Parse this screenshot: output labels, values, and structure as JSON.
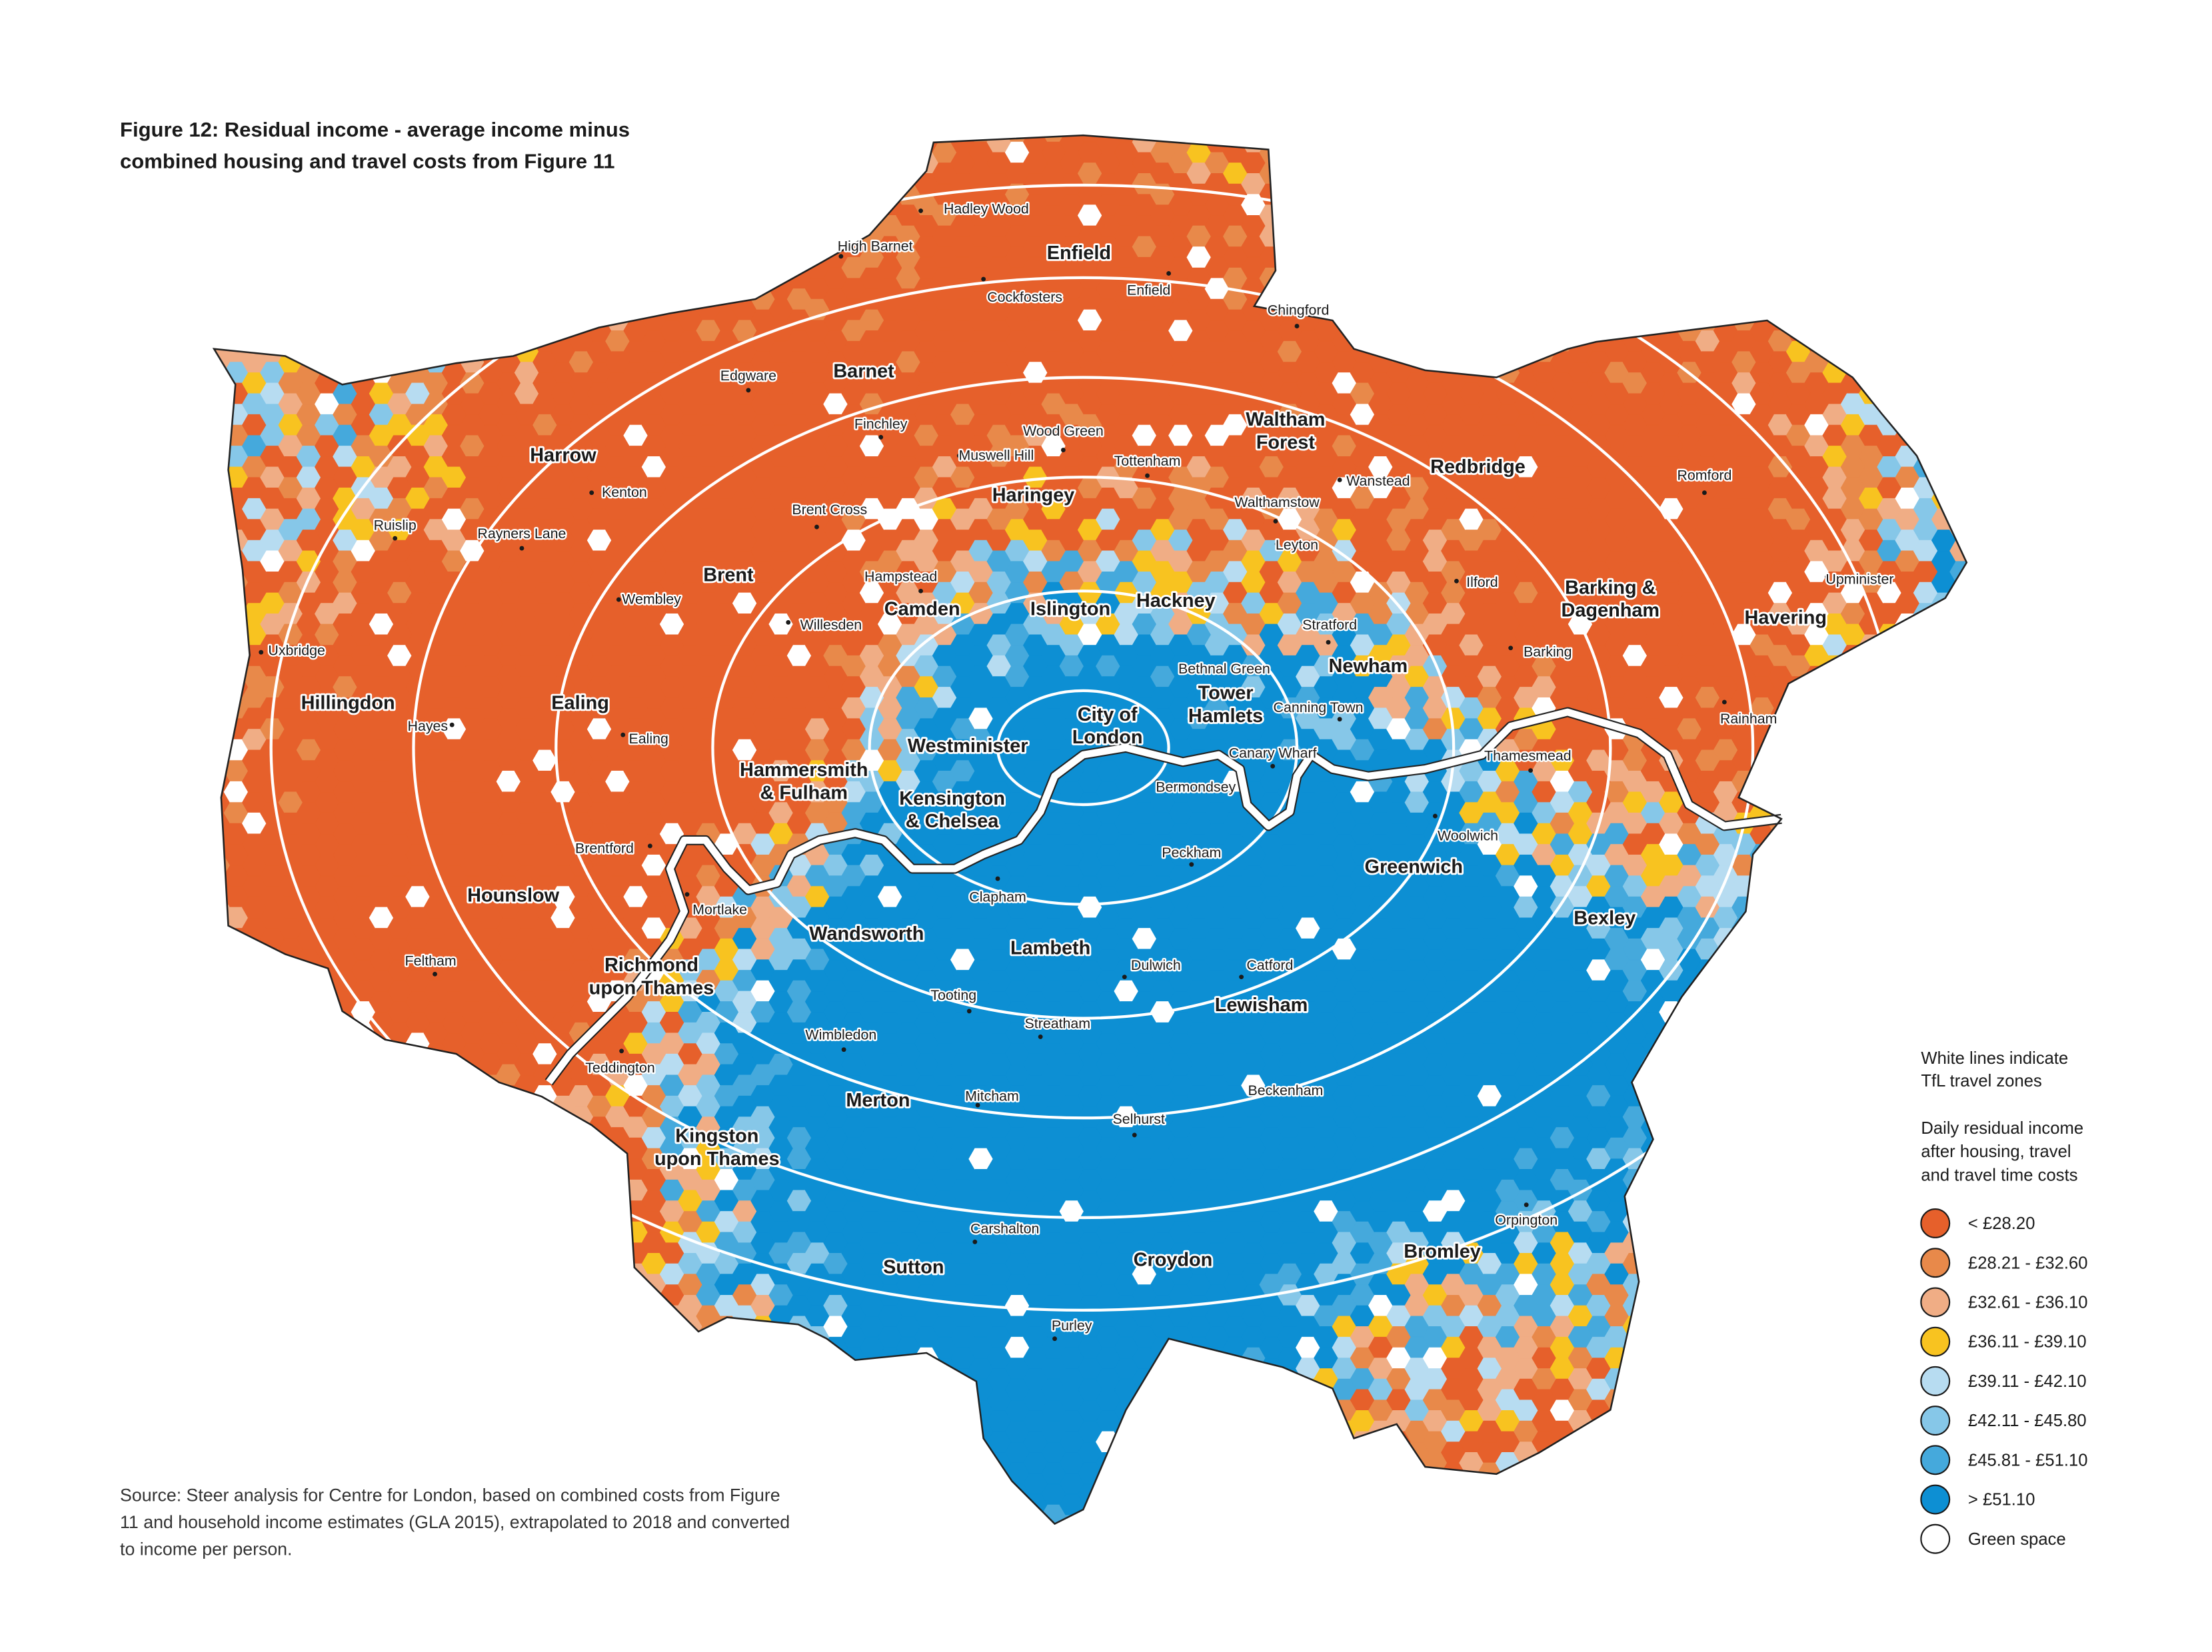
{
  "title": [
    "Figure 12: Residual income - average income minus",
    "combined housing and travel costs from Figure 11"
  ],
  "boroughs": [
    [
      "Enfield"
    ],
    [
      "Barnet"
    ],
    [
      "Harrow"
    ],
    [
      "Haringey"
    ],
    [
      "Waltham",
      "Forest"
    ],
    [
      "Redbridge"
    ],
    [
      "Havering"
    ],
    [
      "Barking &",
      "Dagenham"
    ],
    [
      "Hillingdon"
    ],
    [
      "Ealing"
    ],
    [
      "Brent"
    ],
    [
      "Camden"
    ],
    [
      "Islington"
    ],
    [
      "Hackney"
    ],
    [
      "Newham"
    ],
    [
      "Tower",
      "Hamlets"
    ],
    [
      "City of",
      "London"
    ],
    [
      "Westminister"
    ],
    [
      "Hammersmith",
      "& Fulham"
    ],
    [
      "Kensington",
      "& Chelsea"
    ],
    [
      "Hounslow"
    ],
    [
      "Richmond",
      "upon Thames"
    ],
    [
      "Wandsworth"
    ],
    [
      "Lambeth"
    ],
    [
      "Greenwich"
    ],
    [
      "Bexley"
    ],
    [
      "Lewisham"
    ],
    [
      "Merton"
    ],
    [
      "Kingston",
      "upon Thames"
    ],
    [
      "Croydon"
    ],
    [
      "Sutton"
    ],
    [
      "Bromley"
    ]
  ],
  "places": [
    "Hadley Wood",
    "High Barnet",
    "Cockfosters",
    "Enfield",
    "Chingford",
    "Edgware",
    "Finchley",
    "Wood Green",
    "Muswell Hill",
    "Tottenham",
    "Kenton",
    "Wanstead",
    "Ruislip",
    "Rayners Lane",
    "Brent Cross",
    "Walthamstow",
    "Leyton",
    "Romford",
    "Hampstead",
    "Wembley",
    "Ilford",
    "Upminister",
    "Willesden",
    "Stratford",
    "Uxbridge",
    "Barking",
    "Bethnal Green",
    "Canning Town",
    "Hayes",
    "Ealing",
    "Rainham",
    "Canary Wharf",
    "Thamesmead",
    "Bermondsey",
    "Woolwich",
    "Brentford",
    "Peckham",
    "Mortlake",
    "Clapham",
    "Feltham",
    "Dulwich",
    "Catford",
    "Tooting",
    "Wimbledon",
    "Streatham",
    "Teddington",
    "Orpington",
    "Beckenham",
    "Mitcham",
    "Selhurst",
    "Carshalton",
    "Purley"
  ],
  "legend": {
    "note": [
      "White lines indicate",
      "TfL travel zones"
    ],
    "heading": [
      "Daily residual income",
      "after housing, travel",
      "and travel time costs"
    ],
    "items": [
      {
        "label": "< £28.20",
        "color": "#e6602b"
      },
      {
        "label": "£28.21 - £32.60",
        "color": "#e8894a"
      },
      {
        "label": "£32.61 - £36.10",
        "color": "#f0ad85"
      },
      {
        "label": "£36.11 - £39.10",
        "color": "#f8c320"
      },
      {
        "label": "£39.11 - £42.10",
        "color": "#b7dcf1"
      },
      {
        "label": "£42.11 - £45.80",
        "color": "#86c7e8"
      },
      {
        "label": "£45.81 - £51.10",
        "color": "#45a9dc"
      },
      {
        "label": "> £51.10",
        "color": "#0d8fd3"
      },
      {
        "label": "Green space",
        "color": "#ffffff"
      }
    ]
  },
  "source": [
    "Source: Steer analysis for Centre for London, based on combined costs from Figure",
    "11 and household income estimates (GLA 2015), extrapolated to 2018 and converted",
    "to income per person."
  ]
}
